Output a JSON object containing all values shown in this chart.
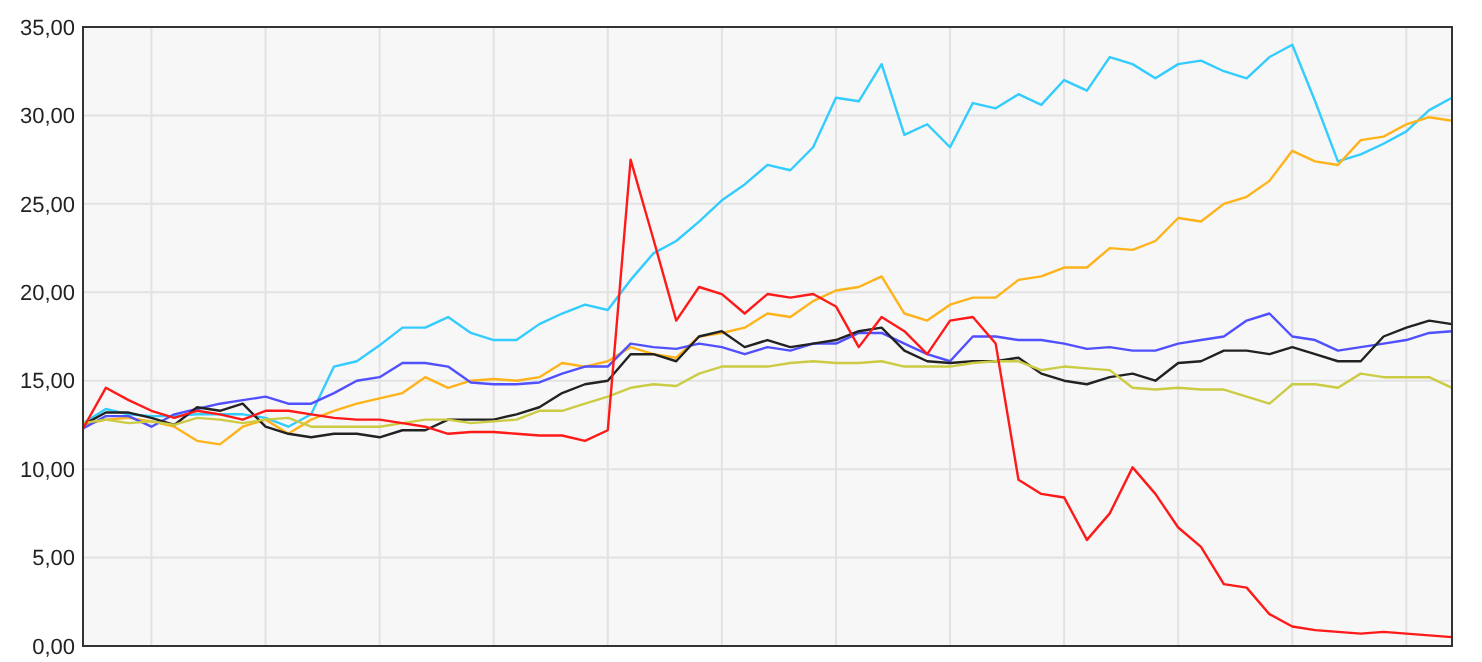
{
  "chart_data": {
    "type": "line",
    "categories": [
      null,
      null,
      null,
      null,
      null,
      null,
      null,
      null,
      null,
      null,
      null,
      null,
      null,
      null,
      null,
      null,
      null,
      null,
      null,
      null,
      null,
      null,
      null,
      null,
      null,
      null,
      null,
      null,
      null,
      null,
      null,
      null,
      null,
      null,
      null,
      null,
      null,
      null,
      null,
      null,
      null,
      null,
      null,
      null,
      null,
      null,
      null,
      null,
      null,
      null,
      null,
      null,
      null,
      null,
      null,
      null,
      null,
      null,
      null,
      null,
      null
    ],
    "ylim": [
      0,
      35
    ],
    "yticks": [
      {
        "value": 0,
        "label": "0,00"
      },
      {
        "value": 5,
        "label": "5,00"
      },
      {
        "value": 10,
        "label": "10,00"
      },
      {
        "value": 15,
        "label": "15,00"
      },
      {
        "value": 20,
        "label": "20,00"
      },
      {
        "value": 25,
        "label": "25,00"
      },
      {
        "value": 30,
        "label": "30,00"
      },
      {
        "value": 35,
        "label": "35,00"
      }
    ],
    "grid": true,
    "marker": "none",
    "line_style": "solid",
    "series": [
      {
        "color": "#33ccff",
        "values": [
          12.6,
          13.4,
          13.1,
          13.0,
          13.0,
          13.1,
          13.1,
          13.1,
          12.9,
          12.4,
          13.1,
          15.8,
          16.1,
          17.0,
          18.0,
          18.0,
          18.6,
          17.7,
          17.3,
          17.3,
          18.2,
          18.8,
          19.3,
          19.0,
          20.7,
          22.2,
          22.9,
          24.0,
          25.2,
          26.1,
          27.2,
          26.9,
          28.2,
          31.0,
          30.8,
          32.9,
          28.9,
          29.5,
          28.2,
          30.7,
          30.4,
          31.2,
          30.6,
          32.0,
          31.4,
          33.3,
          32.9,
          32.1,
          32.9,
          33.1,
          32.5,
          32.1,
          33.3,
          34.0,
          30.8,
          27.4,
          27.8,
          28.4,
          29.1,
          30.3,
          31.0
        ]
      },
      {
        "color": "#ffb31a",
        "values": [
          12.5,
          12.8,
          12.9,
          12.7,
          12.4,
          11.6,
          11.4,
          12.4,
          12.8,
          12.0,
          12.8,
          13.3,
          13.7,
          14.0,
          14.3,
          15.2,
          14.6,
          15.0,
          15.1,
          15.0,
          15.2,
          16.0,
          15.8,
          16.1,
          16.9,
          16.5,
          16.3,
          17.5,
          17.7,
          18.0,
          18.8,
          18.6,
          19.5,
          20.1,
          20.3,
          20.9,
          18.8,
          18.4,
          19.3,
          19.7,
          19.7,
          20.7,
          20.9,
          21.4,
          21.4,
          22.5,
          22.4,
          22.9,
          24.2,
          24.0,
          25.0,
          25.4,
          26.3,
          28.0,
          27.4,
          27.2,
          28.6,
          28.8,
          29.5,
          29.9,
          29.7
        ]
      },
      {
        "color": "#5050ff",
        "values": [
          12.3,
          13.0,
          13.0,
          12.4,
          13.1,
          13.4,
          13.7,
          13.9,
          14.1,
          13.7,
          13.7,
          14.3,
          15.0,
          15.2,
          16.0,
          16.0,
          15.8,
          14.9,
          14.8,
          14.8,
          14.9,
          15.4,
          15.8,
          15.8,
          17.1,
          16.9,
          16.8,
          17.1,
          16.9,
          16.5,
          16.9,
          16.7,
          17.1,
          17.1,
          17.7,
          17.7,
          17.1,
          16.5,
          16.1,
          17.5,
          17.5,
          17.3,
          17.3,
          17.1,
          16.8,
          16.9,
          16.7,
          16.7,
          17.1,
          17.3,
          17.5,
          18.4,
          18.8,
          17.5,
          17.3,
          16.7,
          16.9,
          17.1,
          17.3,
          17.7,
          17.8
        ]
      },
      {
        "color": "#222222",
        "values": [
          12.5,
          13.2,
          13.2,
          12.9,
          12.5,
          13.5,
          13.3,
          13.7,
          12.4,
          12.0,
          11.8,
          12.0,
          12.0,
          11.8,
          12.2,
          12.2,
          12.8,
          12.8,
          12.8,
          13.1,
          13.5,
          14.3,
          14.8,
          15.0,
          16.5,
          16.5,
          16.1,
          17.5,
          17.8,
          16.9,
          17.3,
          16.9,
          17.1,
          17.3,
          17.8,
          18.0,
          16.7,
          16.1,
          16.0,
          16.1,
          16.1,
          16.3,
          15.4,
          15.0,
          14.8,
          15.2,
          15.4,
          15.0,
          16.0,
          16.1,
          16.7,
          16.7,
          16.5,
          16.9,
          16.5,
          16.1,
          16.1,
          17.5,
          18.0,
          18.4,
          18.2
        ]
      },
      {
        "color": "#cccc44",
        "values": [
          12.6,
          12.8,
          12.6,
          12.7,
          12.5,
          12.9,
          12.8,
          12.6,
          12.8,
          12.9,
          12.4,
          12.4,
          12.4,
          12.4,
          12.6,
          12.8,
          12.8,
          12.6,
          12.7,
          12.8,
          13.3,
          13.3,
          13.7,
          14.1,
          14.6,
          14.8,
          14.7,
          15.4,
          15.8,
          15.8,
          15.8,
          16.0,
          16.1,
          16.0,
          16.0,
          16.1,
          15.8,
          15.8,
          15.8,
          16.0,
          16.1,
          16.1,
          15.6,
          15.8,
          15.7,
          15.6,
          14.6,
          14.5,
          14.6,
          14.5,
          14.5,
          14.1,
          13.7,
          14.8,
          14.8,
          14.6,
          15.4,
          15.2,
          15.2,
          15.2,
          14.6
        ]
      },
      {
        "color": "#ff1a1a",
        "values": [
          12.3,
          14.6,
          13.9,
          13.3,
          12.9,
          13.3,
          13.1,
          12.8,
          13.3,
          13.3,
          13.1,
          12.9,
          12.8,
          12.8,
          12.6,
          12.4,
          12.0,
          12.1,
          12.1,
          12.0,
          11.9,
          11.9,
          11.6,
          12.2,
          27.5,
          23.0,
          18.4,
          20.3,
          19.9,
          18.8,
          19.9,
          19.7,
          19.9,
          19.2,
          16.9,
          18.6,
          17.8,
          16.5,
          18.4,
          18.6,
          17.1,
          9.4,
          8.6,
          8.4,
          6.0,
          7.5,
          10.1,
          8.6,
          6.7,
          5.6,
          3.5,
          3.3,
          1.8,
          1.1,
          0.9,
          0.8,
          0.7,
          0.8,
          0.7,
          0.6,
          0.5
        ]
      }
    ]
  }
}
